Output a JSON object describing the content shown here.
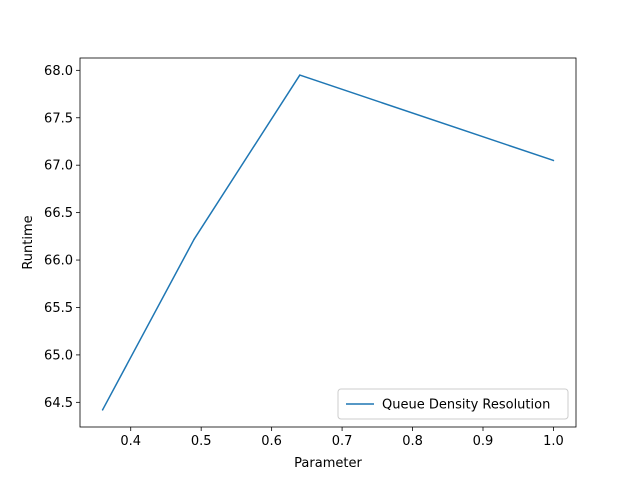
{
  "chart_data": {
    "type": "line",
    "title": "",
    "xlabel": "Parameter",
    "ylabel": "Runtime",
    "xlim": [
      0.328,
      1.032
    ],
    "ylim": [
      64.24,
      68.13
    ],
    "xticks": [
      0.4,
      0.5,
      0.6,
      0.7,
      0.8,
      0.9,
      1.0
    ],
    "xtick_labels": [
      "0.4",
      "0.5",
      "0.6",
      "0.7",
      "0.8",
      "0.9",
      "1.0"
    ],
    "yticks": [
      64.5,
      65.0,
      65.5,
      66.0,
      66.5,
      67.0,
      67.5,
      68.0
    ],
    "ytick_labels": [
      "64.5",
      "65.0",
      "65.5",
      "66.0",
      "66.5",
      "67.0",
      "67.5",
      "68.0"
    ],
    "grid": false,
    "legend_position": "lower-right",
    "series": [
      {
        "name": "Queue Density Resolution",
        "color": "#1f77b4",
        "x": [
          0.36,
          0.49,
          0.64,
          1.0
        ],
        "y": [
          64.42,
          66.22,
          67.95,
          67.05
        ]
      }
    ]
  }
}
